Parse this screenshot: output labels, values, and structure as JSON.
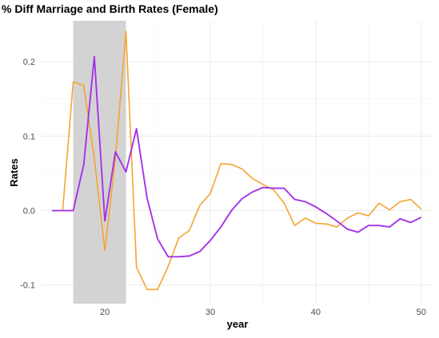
{
  "chart_data": {
    "type": "line",
    "title": "% Diff Marriage and Birth Rates (Female)",
    "xlabel": "year",
    "ylabel": "Rates",
    "xlim": [
      14,
      51
    ],
    "ylim": [
      -0.125,
      0.255
    ],
    "x_ticks": [
      20,
      30,
      40,
      50
    ],
    "y_ticks": [
      -0.1,
      0.0,
      0.1,
      0.2
    ],
    "x_tick_labels": [
      "20",
      "30",
      "40",
      "50"
    ],
    "y_tick_labels": [
      "-0.1",
      "0.0",
      "0.1",
      "0.2"
    ],
    "grid": true,
    "legend": "none",
    "shaded_region": {
      "x0": 17,
      "x1": 22,
      "color": "#d3d3d3"
    },
    "series": [
      {
        "color": "#f5a431",
        "x": [
          15,
          16,
          17,
          18,
          19,
          20,
          21,
          22,
          23,
          24,
          25,
          26,
          27,
          28,
          29,
          30,
          31,
          32,
          33,
          34,
          35,
          36,
          37,
          38,
          39,
          40,
          41,
          42,
          43,
          44,
          45,
          46,
          47,
          48,
          49,
          50
        ],
        "values": [
          0.0,
          0.0,
          0.173,
          0.168,
          0.07,
          -0.054,
          0.07,
          0.241,
          -0.076,
          -0.106,
          -0.106,
          -0.075,
          -0.037,
          -0.027,
          0.007,
          0.023,
          0.063,
          0.062,
          0.056,
          0.043,
          0.035,
          0.028,
          0.01,
          -0.02,
          -0.01,
          -0.017,
          -0.018,
          -0.022,
          -0.01,
          -0.003,
          -0.007,
          0.01,
          0.001,
          0.012,
          0.015,
          0.002
        ]
      },
      {
        "color": "#a333e8",
        "x": [
          15,
          16,
          17,
          18,
          19,
          20,
          21,
          22,
          23,
          24,
          25,
          26,
          27,
          28,
          29,
          30,
          31,
          32,
          33,
          34,
          35,
          36,
          37,
          38,
          39,
          40,
          41,
          42,
          43,
          44,
          45,
          46,
          47,
          48,
          49,
          50
        ],
        "values": [
          0.0,
          0.0,
          0.0,
          0.062,
          0.207,
          -0.014,
          0.079,
          0.052,
          0.11,
          0.017,
          -0.038,
          -0.062,
          -0.062,
          -0.061,
          -0.055,
          -0.04,
          -0.022,
          0.0,
          0.016,
          0.025,
          0.031,
          0.03,
          0.03,
          0.015,
          0.012,
          0.005,
          -0.004,
          -0.014,
          -0.025,
          -0.029,
          -0.02,
          -0.02,
          -0.022,
          -0.011,
          -0.016,
          -0.009
        ]
      }
    ]
  }
}
